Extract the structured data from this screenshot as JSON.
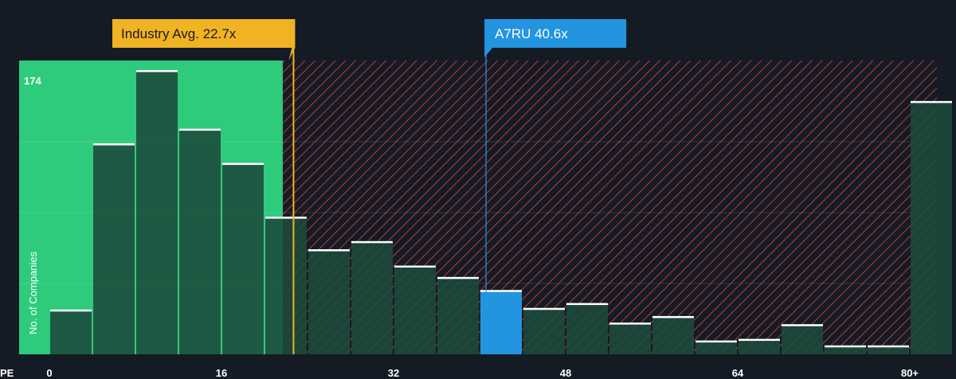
{
  "chart_data": {
    "type": "bar",
    "xlabel": "PE",
    "ylabel": "No. of Companies",
    "x_ticks": [
      "0",
      "16",
      "32",
      "48",
      "64",
      "80+"
    ],
    "x_tick_values": [
      0,
      16,
      32,
      48,
      64,
      80
    ],
    "bin_width": 4,
    "bins_start": [
      0,
      4,
      8,
      12,
      16,
      20,
      24,
      28,
      32,
      36,
      40,
      44,
      48,
      52,
      56,
      60,
      64,
      68,
      72,
      76,
      80
    ],
    "values": [
      27,
      129,
      174,
      138,
      117,
      84,
      64,
      69,
      54,
      47,
      39,
      28,
      31,
      19,
      23,
      8,
      9,
      18,
      5,
      5,
      155
    ],
    "ymax_label": "174",
    "ylim": [
      0,
      174
    ],
    "highlight_bin_start": 40,
    "fair_range": [
      0,
      21.7
    ],
    "industry_avg": {
      "label": "Industry Avg. 22.7x",
      "value": 22.7,
      "color": "#f0b323"
    },
    "company": {
      "label": "A7RU 40.6x",
      "value": 40.6,
      "color": "#2394e0"
    },
    "colors": {
      "green_zone": "#2ecb7d",
      "bar_fill": "#1c4a3b",
      "bar_highlight": "#2394e0",
      "hatch": "#b73a40",
      "background": "#151b24"
    }
  }
}
